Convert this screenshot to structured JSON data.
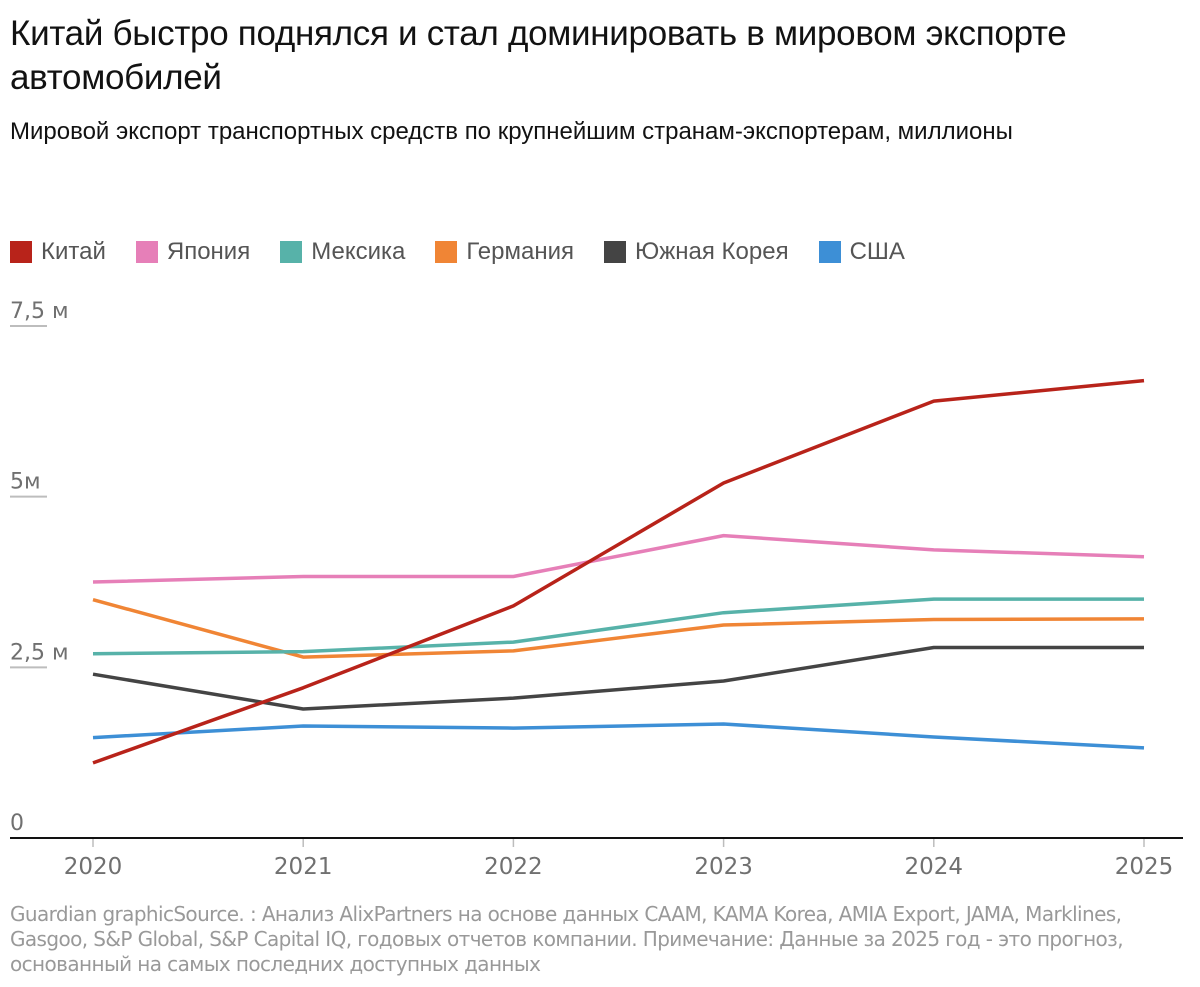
{
  "title": "Китай быстро поднялся и стал доминировать в мировом экспорте автомобилей",
  "subtitle": "Мировой экспорт транспортных средств по крупнейшим странам-экспортерам, миллионы",
  "footer": "Guardian graphicSource. : Анализ AlixPartners на основе данных CAAM, KAMA Korea, AMIA Export, JAMA, Marklines, Gasgoo, S&P Global, S&P Capital IQ, годовых отчетов компании. Примечание: Данные за 2025 год - это прогноз, основанный на самых последних доступных данных",
  "legend": [
    {
      "label": "Китай",
      "color": "#b8231a"
    },
    {
      "label": "Япония",
      "color": "#e67fb8"
    },
    {
      "label": "Мексика",
      "color": "#57b2a9"
    },
    {
      "label": "Германия",
      "color": "#f08535"
    },
    {
      "label": "Южная Корея",
      "color": "#444444"
    },
    {
      "label": "США",
      "color": "#3d8fd6"
    }
  ],
  "chart_data": {
    "type": "line",
    "title": "Китай быстро поднялся и стал доминировать в мировом экспорте автомобилей",
    "subtitle": "Мировой экспорт транспортных средств по крупнейшим странам-экспортерам, миллионы",
    "xlabel": "",
    "ylabel": "",
    "x": [
      "2020",
      "2021",
      "2022",
      "2023",
      "2024",
      "2025"
    ],
    "ylim": [
      0,
      7.5
    ],
    "yticks": [
      0,
      2.5,
      5,
      7.5
    ],
    "ytick_labels": [
      "0",
      "2,5 м",
      "5м",
      "7,5 м"
    ],
    "grid": false,
    "legend_position": "top-left",
    "series": [
      {
        "name": "Китай",
        "color": "#b8231a",
        "values": [
          1.1,
          2.2,
          3.4,
          5.2,
          6.4,
          6.7
        ]
      },
      {
        "name": "Япония",
        "color": "#e67fb8",
        "values": [
          3.75,
          3.83,
          3.83,
          4.43,
          4.22,
          4.12
        ]
      },
      {
        "name": "Мексика",
        "color": "#57b2a9",
        "values": [
          2.7,
          2.73,
          2.87,
          3.3,
          3.5,
          3.5
        ]
      },
      {
        "name": "Германия",
        "color": "#f08535",
        "values": [
          3.49,
          2.65,
          2.74,
          3.12,
          3.2,
          3.21
        ]
      },
      {
        "name": "Южная Корея",
        "color": "#444444",
        "values": [
          2.4,
          1.89,
          2.05,
          2.3,
          2.79,
          2.79
        ]
      },
      {
        "name": "США",
        "color": "#3d8fd6",
        "values": [
          1.47,
          1.64,
          1.61,
          1.67,
          1.48,
          1.32
        ]
      }
    ]
  }
}
